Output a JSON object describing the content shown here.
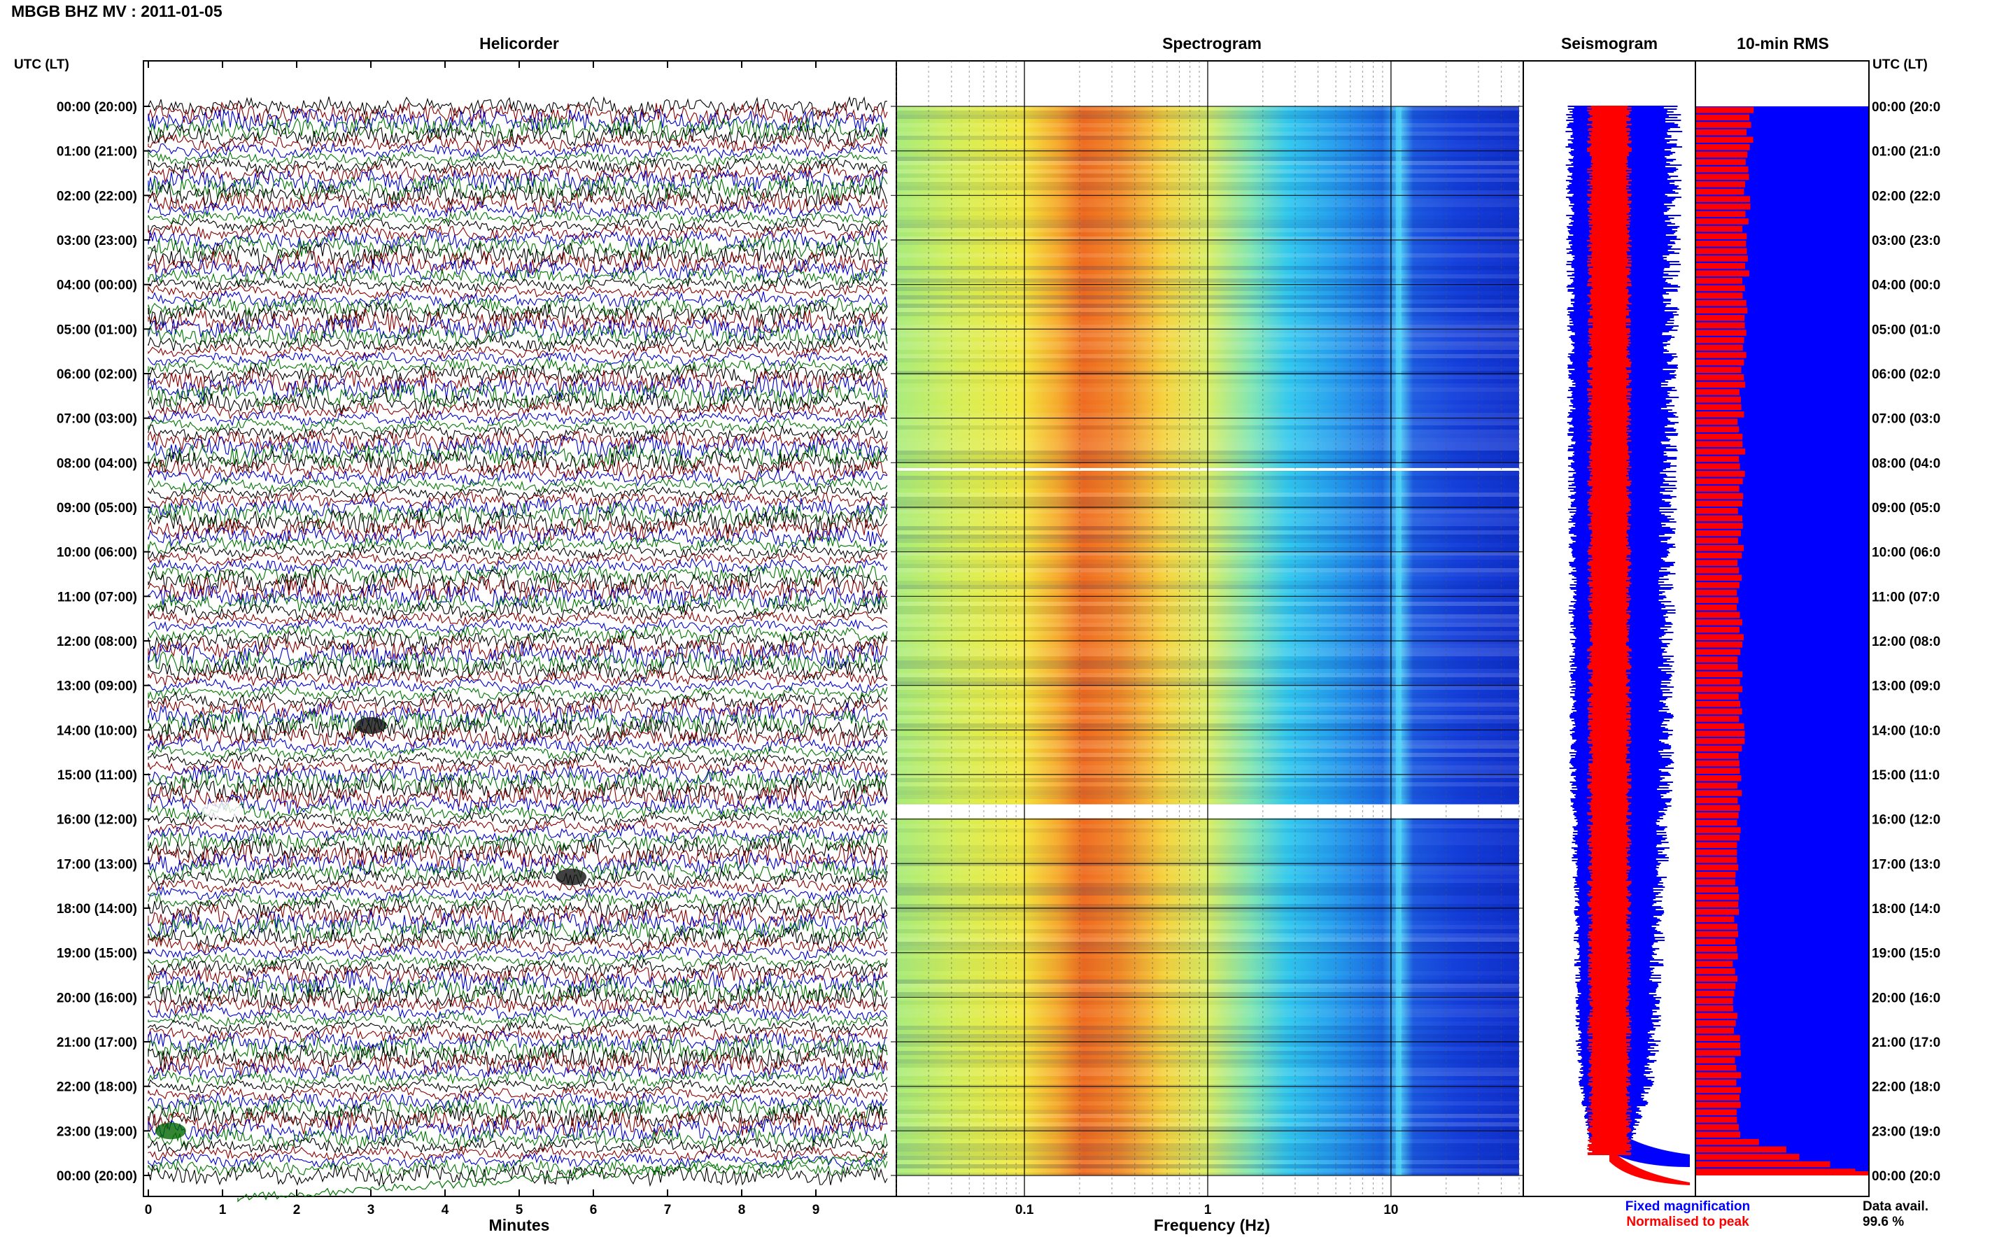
{
  "page_title": "MBGB BHZ MV : 2011-01-05",
  "time_axis_label": "UTC (LT)",
  "hour_ticks": [
    "00:00 (20:00)",
    "01:00 (21:00)",
    "02:00 (22:00)",
    "03:00 (23:00)",
    "04:00 (00:00)",
    "05:00 (01:00)",
    "06:00 (02:00)",
    "07:00 (03:00)",
    "08:00 (04:00)",
    "09:00 (05:00)",
    "10:00 (06:00)",
    "11:00 (07:00)",
    "12:00 (08:00)",
    "13:00 (09:00)",
    "14:00 (10:00)",
    "15:00 (11:00)",
    "16:00 (12:00)",
    "17:00 (13:00)",
    "18:00 (14:00)",
    "19:00 (15:00)",
    "20:00 (16:00)",
    "21:00 (17:00)",
    "22:00 (18:00)",
    "23:00 (19:00)",
    "00:00 (20:00)"
  ],
  "right_hour_ticks": [
    "00:00 (20:0",
    "01:00 (21:0",
    "02:00 (22:0",
    "03:00 (23:0",
    "04:00 (00:0",
    "05:00 (01:0",
    "06:00 (02:0",
    "07:00 (03:0",
    "08:00 (04:0",
    "09:00 (05:0",
    "10:00 (06:0",
    "11:00 (07:0",
    "12:00 (08:0",
    "13:00 (09:0",
    "14:00 (10:0",
    "15:00 (11:0",
    "16:00 (12:0",
    "17:00 (13:0",
    "18:00 (14:0",
    "19:00 (15:0",
    "20:00 (16:0",
    "21:00 (17:0",
    "22:00 (18:0",
    "23:00 (19:0",
    "00:00 (20:0"
  ],
  "colors": {
    "trace_cycle": [
      "#000000",
      "#8b0000",
      "#0000cc",
      "#007700"
    ],
    "fixed_magnification": "#0000ff",
    "normalised_to_peak": "#ff0000",
    "rms_background": "#0000ff",
    "rms_bars": "#ff0000"
  },
  "chart_data": [
    {
      "type": "line",
      "title": "Helicorder",
      "xlabel": "Minutes",
      "x_ticks": [
        "0",
        "1",
        "2",
        "3",
        "4",
        "5",
        "6",
        "7",
        "8",
        "9"
      ],
      "xlim": [
        0,
        10
      ],
      "ylim_hours": [
        0,
        24
      ],
      "lines_per_hour": 6,
      "trace_color_cycle": [
        "black",
        "darkred",
        "blue",
        "green"
      ],
      "events": [
        {
          "hour": 13.9,
          "minute": 3.0,
          "note": "dark burst"
        },
        {
          "hour": 15.8,
          "minute": 1.0,
          "note": "gap / white streaks"
        },
        {
          "hour": 17.3,
          "minute": 5.7,
          "note": "dark burst"
        },
        {
          "hour": 23.0,
          "minute": 0.3,
          "note": "green burst"
        }
      ]
    },
    {
      "type": "heatmap",
      "title": "Spectrogram",
      "xlabel": "Frequency (Hz)",
      "x_scale": "log",
      "x_ticks": [
        "0.1",
        "1",
        "10"
      ],
      "xlim": [
        0.02,
        50
      ],
      "ylim_hours": [
        0,
        24
      ],
      "peak_band_hz": [
        0.2,
        0.5
      ],
      "persistent_line_hz": 11,
      "data_gaps_hours": [
        8.15,
        15.7
      ]
    },
    {
      "type": "area",
      "title": "Seismogram",
      "ylim_hours": [
        0,
        24
      ],
      "series": [
        {
          "name": "Fixed magnification",
          "color": "#0000ff"
        },
        {
          "name": "Normalised to peak",
          "color": "#ff0000"
        }
      ],
      "fixed_half_width_by_hour": [
        1.0,
        1.0,
        0.98,
        0.98,
        0.98,
        0.96,
        0.95,
        0.95,
        0.93,
        0.92,
        0.9,
        0.9,
        0.9,
        0.88,
        0.9,
        0.88,
        0.85,
        0.82,
        0.78,
        0.75,
        0.72,
        0.7,
        0.6,
        0.4,
        0.0
      ],
      "normalised_half_width": 0.4
    },
    {
      "type": "bar",
      "title": "10-min RMS",
      "ylim_hours": [
        0,
        24
      ],
      "bins_per_hour": 6,
      "rms_hourly": [
        0.32,
        0.31,
        0.3,
        0.28,
        0.29,
        0.27,
        0.27,
        0.26,
        0.27,
        0.26,
        0.26,
        0.25,
        0.26,
        0.25,
        0.27,
        0.26,
        0.25,
        0.24,
        0.24,
        0.23,
        0.23,
        0.24,
        0.25,
        0.26,
        1.0
      ],
      "data_availability_label": "Data avail.",
      "data_availability": "99.6 %"
    }
  ]
}
